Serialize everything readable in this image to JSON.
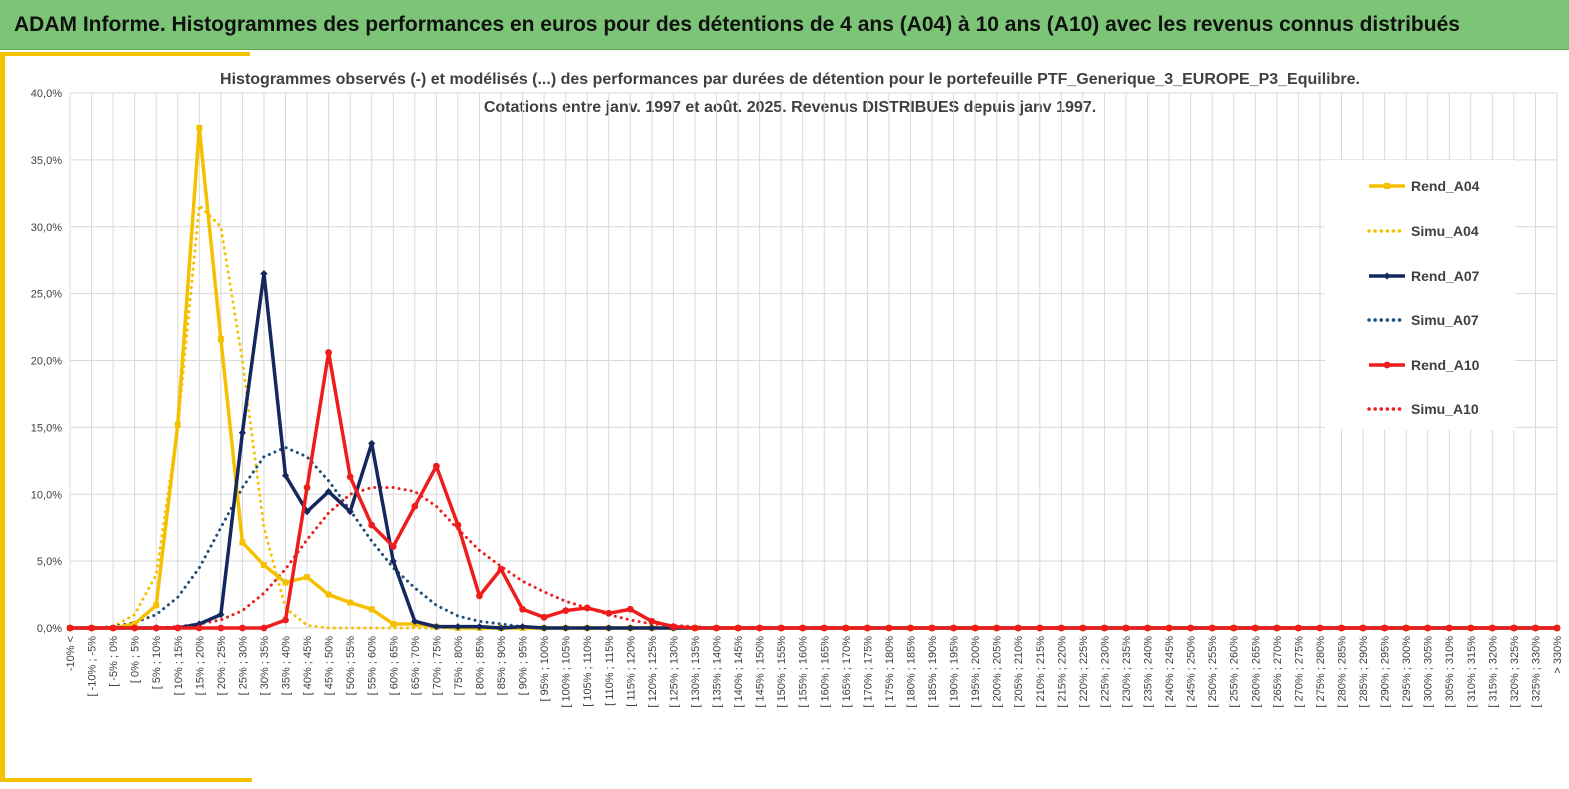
{
  "header": {
    "banner_title": "ADAM Informe. Histogrammes des performances en euros pour des détentions de 4 ans (A04) à 10 ans (A10) avec les revenus connus distribués"
  },
  "chart_data": {
    "type": "line",
    "title_line1": "Histogrammes observés (-) et modélisés (...) des performances par durées de détention pour le portefeuille PTF_Generique_3_EUROPE_P3_Equilibre.",
    "title_line2": "Cotations entre janv. 1997 et août. 2025. Revenus DISTRIBUES depuis janv 1997.",
    "ylim": [
      0,
      40
    ],
    "yticks": [
      0,
      5,
      10,
      15,
      20,
      25,
      30,
      35,
      40
    ],
    "ytick_labels": [
      "0,0%",
      "5,0%",
      "10,0%",
      "15,0%",
      "20,0%",
      "25,0%",
      "30,0%",
      "35,0%",
      "40,0%"
    ],
    "categories": [
      "-10% <",
      "[ -10% ; -5%",
      "[ -5% ; 0%",
      "[ 0% ; 5%",
      "[ 5% ; 10%",
      "[ 10% ; 15%",
      "[ 15% ; 20%",
      "[ 20% ; 25%",
      "[ 25% ; 30%",
      "[ 30% ; 35%",
      "[ 35% ; 40%",
      "[ 40% ; 45%",
      "[ 45% ; 50%",
      "[ 50% ; 55%",
      "[ 55% ; 60%",
      "[ 60% ; 65%",
      "[ 65% ; 70%",
      "[ 70% ; 75%",
      "[ 75% ; 80%",
      "[ 80% ; 85%",
      "[ 85% ; 90%",
      "[ 90% ; 95%",
      "[ 95% ; 100%",
      "[ 100% ; 105%",
      "[ 105% ; 110%",
      "[ 110% ; 115%",
      "[ 115% ; 120%",
      "[ 120% ; 125%",
      "[ 125% ; 130%",
      "[ 130% ; 135%",
      "[ 135% ; 140%",
      "[ 140% ; 145%",
      "[ 145% ; 150%",
      "[ 150% ; 155%",
      "[ 155% ; 160%",
      "[ 160% ; 165%",
      "[ 165% ; 170%",
      "[ 170% ; 175%",
      "[ 175% ; 180%",
      "[ 180% ; 185%",
      "[ 185% ; 190%",
      "[ 190% ; 195%",
      "[ 195% ; 200%",
      "[ 200% ; 205%",
      "[ 205% ; 210%",
      "[ 210% ; 215%",
      "[ 215% ; 220%",
      "[ 220% ; 225%",
      "[ 225% ; 230%",
      "[ 230% ; 235%",
      "[ 235% ; 240%",
      "[ 240% ; 245%",
      "[ 245% ; 250%",
      "[ 250% ; 255%",
      "[ 255% ; 260%",
      "[ 260% ; 265%",
      "[ 265% ; 270%",
      "[ 270% ; 275%",
      "[ 275% ; 280%",
      "[ 280% ; 285%",
      "[ 285% ; 290%",
      "[ 290% ; 295%",
      "[ 295% ; 300%",
      "[ 300% ; 305%",
      "[ 305% ; 310%",
      "[ 310% ; 315%",
      "[ 315% ; 320%",
      "[ 320% ; 325%",
      "[ 325% ; 330%",
      "> 330%"
    ],
    "grid": true,
    "legend_position": "right",
    "series": [
      {
        "name": "Rend_A04",
        "style": "solid",
        "marker": "square",
        "color": "#f5c000",
        "values": [
          0,
          0,
          0,
          0.3,
          1.7,
          15.2,
          37.4,
          21.6,
          6.4,
          4.7,
          3.4,
          3.8,
          2.5,
          1.9,
          1.4,
          0.3,
          0.3,
          0.1,
          0,
          0,
          0,
          0,
          0,
          0,
          0,
          0,
          0,
          0,
          0,
          0,
          0,
          0,
          0,
          0,
          0,
          0,
          0,
          0,
          0,
          0,
          0,
          0,
          0,
          0,
          0,
          0,
          0,
          0,
          0,
          0,
          0,
          0,
          0,
          0,
          0,
          0,
          0,
          0,
          0,
          0,
          0,
          0,
          0,
          0,
          0,
          0,
          0,
          0,
          0,
          0
        ]
      },
      {
        "name": "Simu_A04",
        "style": "dotted",
        "marker": "none",
        "color": "#f5c000",
        "values": [
          0,
          0,
          0.1,
          1.0,
          4.0,
          15.0,
          31.6,
          30.0,
          20.0,
          7.5,
          1.5,
          0.2,
          0,
          0,
          0,
          0,
          0,
          0,
          0,
          0,
          0,
          0,
          0,
          0,
          0,
          0,
          0,
          0,
          0,
          0,
          0,
          0,
          0,
          0,
          0,
          0,
          0,
          0,
          0,
          0,
          0,
          0,
          0,
          0,
          0,
          0,
          0,
          0,
          0,
          0,
          0,
          0,
          0,
          0,
          0,
          0,
          0,
          0,
          0,
          0,
          0,
          0,
          0,
          0,
          0,
          0,
          0,
          0,
          0,
          0
        ]
      },
      {
        "name": "Rend_A07",
        "style": "solid",
        "marker": "diamond",
        "color": "#14285e",
        "values": [
          0,
          0,
          0,
          0,
          0,
          0,
          0.3,
          1.0,
          14.6,
          26.5,
          11.4,
          8.7,
          10.2,
          8.7,
          13.8,
          5.0,
          0.5,
          0.1,
          0.1,
          0.1,
          0,
          0.1,
          0,
          0,
          0,
          0,
          0,
          0,
          0,
          0,
          0,
          0,
          0,
          0,
          0,
          0,
          0,
          0,
          0,
          0,
          0,
          0,
          0,
          0,
          0,
          0,
          0,
          0,
          0,
          0,
          0,
          0,
          0,
          0,
          0,
          0,
          0,
          0,
          0,
          0,
          0,
          0,
          0,
          0,
          0,
          0,
          0,
          0,
          0,
          0
        ]
      },
      {
        "name": "Simu_A07",
        "style": "dotted",
        "marker": "none",
        "color": "#1f4e79",
        "values": [
          0,
          0,
          0.1,
          0.4,
          1.0,
          2.3,
          4.5,
          7.5,
          10.5,
          12.8,
          13.5,
          12.8,
          11.0,
          8.8,
          6.5,
          4.5,
          3.0,
          1.7,
          0.9,
          0.5,
          0.3,
          0.1,
          0,
          0,
          0,
          0,
          0,
          0,
          0,
          0,
          0,
          0,
          0,
          0,
          0,
          0,
          0,
          0,
          0,
          0,
          0,
          0,
          0,
          0,
          0,
          0,
          0,
          0,
          0,
          0,
          0,
          0,
          0,
          0,
          0,
          0,
          0,
          0,
          0,
          0,
          0,
          0,
          0,
          0,
          0,
          0,
          0,
          0,
          0,
          0
        ]
      },
      {
        "name": "Rend_A10",
        "style": "solid",
        "marker": "circle",
        "color": "#ee1c1c",
        "values": [
          0,
          0,
          0,
          0,
          0,
          0,
          0,
          0,
          0,
          0,
          0.6,
          10.5,
          20.6,
          11.3,
          7.7,
          6.1,
          9.1,
          12.1,
          7.7,
          2.4,
          4.4,
          1.4,
          0.8,
          1.3,
          1.5,
          1.1,
          1.4,
          0.5,
          0.1,
          0,
          0,
          0,
          0,
          0,
          0,
          0,
          0,
          0,
          0,
          0,
          0,
          0,
          0,
          0,
          0,
          0,
          0,
          0,
          0,
          0,
          0,
          0,
          0,
          0,
          0,
          0,
          0,
          0,
          0,
          0,
          0,
          0,
          0,
          0,
          0,
          0,
          0,
          0,
          0,
          0
        ]
      },
      {
        "name": "Simu_A10",
        "style": "dotted",
        "marker": "none",
        "color": "#ee1c1c",
        "values": [
          0,
          0,
          0,
          0,
          0,
          0.1,
          0.3,
          0.6,
          1.3,
          2.6,
          4.4,
          6.6,
          8.6,
          10.0,
          10.5,
          10.5,
          10.2,
          9.1,
          7.4,
          5.8,
          4.6,
          3.5,
          2.7,
          2.0,
          1.5,
          1.0,
          0.6,
          0.3,
          0.2,
          0.1,
          0,
          0,
          0,
          0,
          0,
          0,
          0,
          0,
          0,
          0,
          0,
          0,
          0,
          0,
          0,
          0,
          0,
          0,
          0,
          0,
          0,
          0,
          0,
          0,
          0,
          0,
          0,
          0,
          0,
          0,
          0,
          0,
          0,
          0,
          0,
          0,
          0,
          0,
          0,
          0
        ]
      }
    ]
  }
}
